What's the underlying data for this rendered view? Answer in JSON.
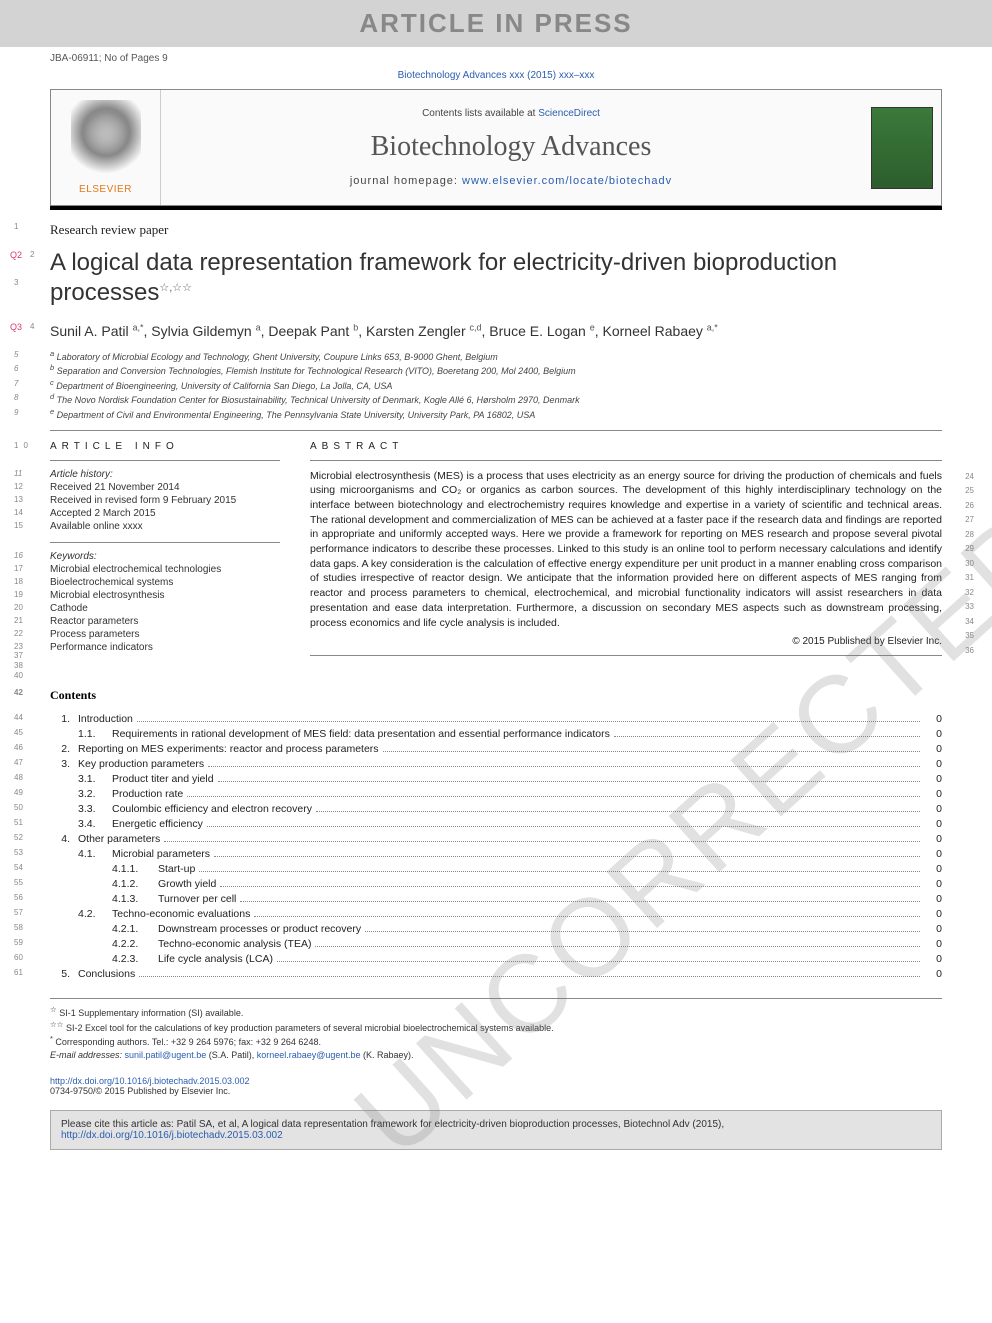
{
  "banner": "ARTICLE IN PRESS",
  "proof_info": "JBA-06911; No of Pages 9",
  "journal_ref_text": "Biotechnology Advances xxx (2015) xxx–xxx",
  "contents_list_pre": "Contents lists available at ",
  "contents_list_link": "ScienceDirect",
  "journal_title": "Biotechnology Advances",
  "journal_homepage_label": "journal homepage: ",
  "journal_homepage_link": "www.elsevier.com/locate/biotechadv",
  "publisher_name": "ELSEVIER",
  "article_type": "Research review paper",
  "article_type_ln": "1",
  "title_ln": [
    "2",
    "3"
  ],
  "title_query": "Q2",
  "title": "A logical data representation framework for electricity-driven bioproduction processes",
  "title_stars": "☆,☆☆",
  "authors_query": "Q3",
  "authors_ln": "4",
  "authors_html": "Sunil A. Patil <sup>a,*</sup>, Sylvia Gildemyn <sup>a</sup>, Deepak Pant <sup>b</sup>, Karsten Zengler <sup>c,d</sup>, Bruce E. Logan <sup>e</sup>, Korneel Rabaey <sup>a,*</sup>",
  "affiliations": [
    {
      "ln": "5",
      "sup": "a",
      "text": "Laboratory of Microbial Ecology and Technology, Ghent University, Coupure Links 653, B-9000 Ghent, Belgium"
    },
    {
      "ln": "6",
      "sup": "b",
      "text": "Separation and Conversion Technologies, Flemish Institute for Technological Research (VITO), Boeretang 200, Mol 2400, Belgium"
    },
    {
      "ln": "7",
      "sup": "c",
      "text": "Department of Bioengineering, University of California San Diego, La Jolla, CA, USA"
    },
    {
      "ln": "8",
      "sup": "d",
      "text": "The Novo Nordisk Foundation Center for Biosustainability, Technical University of Denmark, Kogle Allé 6, Hørsholm 2970, Denmark"
    },
    {
      "ln": "9",
      "sup": "e",
      "text": "Department of Civil and Environmental Engineering, The Pennsylvania State University, University Park, PA 16802, USA"
    }
  ],
  "info_heading_ln": "10",
  "info_heading": "ARTICLE INFO",
  "history_heading_ln": "11",
  "history_heading": "Article history:",
  "history": [
    {
      "ln": "12",
      "text": "Received 21 November 2014"
    },
    {
      "ln": "13",
      "text": "Received in revised form 9 February 2015"
    },
    {
      "ln": "14",
      "text": "Accepted 2 March 2015"
    },
    {
      "ln": "15",
      "text": "Available online xxxx"
    }
  ],
  "keywords_heading_ln": "16",
  "keywords_heading": "Keywords:",
  "keywords": [
    {
      "ln": "17",
      "text": "Microbial electrochemical technologies"
    },
    {
      "ln": "18",
      "text": "Bioelectrochemical systems"
    },
    {
      "ln": "19",
      "text": "Microbial electrosynthesis"
    },
    {
      "ln": "20",
      "text": "Cathode"
    },
    {
      "ln": "21",
      "text": "Reactor parameters"
    },
    {
      "ln": "22",
      "text": "Process parameters"
    },
    {
      "ln": "23",
      "text": "Performance indicators"
    }
  ],
  "abs_heading": "ABSTRACT",
  "abstract": "Microbial electrosynthesis (MES) is a process that uses electricity as an energy source for driving the production of chemicals and fuels using microorganisms and CO₂ or organics as carbon sources. The development of this highly interdisciplinary technology on the interface between biotechnology and electrochemistry requires knowledge and expertise in a variety of scientific and technical areas. The rational development and commercialization of MES can be achieved at a faster pace if the research data and findings are reported in appropriate and uniformly accepted ways. Here we provide a framework for reporting on MES research and propose several pivotal performance indicators to describe these processes. Linked to this study is an online tool to perform necessary calculations and identify data gaps. A key consideration is the calculation of effective energy expenditure per unit product in a manner enabling cross comparison of studies irrespective of reactor design. We anticipate that the information provided here on different aspects of MES ranging from reactor and process parameters to chemical, electrochemical, and microbial functionality indicators will assist researchers in data presentation and ease data interpretation. Furthermore, a discussion on secondary MES aspects such as downstream processing, process economics and life cycle analysis is included.",
  "abs_ln_start": 24,
  "abs_ln_end": 36,
  "extra_ln": [
    "37",
    "38",
    "40"
  ],
  "copyright": "© 2015 Published by Elsevier Inc.",
  "contents_heading_ln": "42",
  "contents_heading": "Contents",
  "toc": [
    {
      "ln": "44",
      "level": 1,
      "num": "1.",
      "label": "Introduction",
      "page": "0"
    },
    {
      "ln": "45",
      "level": 2,
      "num": "1.1.",
      "label": "Requirements in rational development of MES field: data presentation and essential performance indicators",
      "page": "0"
    },
    {
      "ln": "46",
      "level": 1,
      "num": "2.",
      "label": "Reporting on MES experiments: reactor and process parameters",
      "page": "0"
    },
    {
      "ln": "47",
      "level": 1,
      "num": "3.",
      "label": "Key production parameters",
      "page": "0"
    },
    {
      "ln": "48",
      "level": 2,
      "num": "3.1.",
      "label": "Product titer and yield",
      "page": "0"
    },
    {
      "ln": "49",
      "level": 2,
      "num": "3.2.",
      "label": "Production rate",
      "page": "0"
    },
    {
      "ln": "50",
      "level": 2,
      "num": "3.3.",
      "label": "Coulombic efficiency and electron recovery",
      "page": "0"
    },
    {
      "ln": "51",
      "level": 2,
      "num": "3.4.",
      "label": "Energetic efficiency",
      "page": "0"
    },
    {
      "ln": "52",
      "level": 1,
      "num": "4.",
      "label": "Other parameters",
      "page": "0"
    },
    {
      "ln": "53",
      "level": 2,
      "num": "4.1.",
      "label": "Microbial parameters",
      "page": "0"
    },
    {
      "ln": "54",
      "level": 3,
      "num": "4.1.1.",
      "label": "Start-up",
      "page": "0"
    },
    {
      "ln": "55",
      "level": 3,
      "num": "4.1.2.",
      "label": "Growth yield",
      "page": "0"
    },
    {
      "ln": "56",
      "level": 3,
      "num": "4.1.3.",
      "label": "Turnover per cell",
      "page": "0"
    },
    {
      "ln": "57",
      "level": 2,
      "num": "4.2.",
      "label": "Techno-economic evaluations",
      "page": "0"
    },
    {
      "ln": "58",
      "level": 3,
      "num": "4.2.1.",
      "label": "Downstream processes or product recovery",
      "page": "0"
    },
    {
      "ln": "59",
      "level": 3,
      "num": "4.2.2.",
      "label": "Techno-economic analysis (TEA)",
      "page": "0"
    },
    {
      "ln": "60",
      "level": 3,
      "num": "4.2.3.",
      "label": "Life cycle analysis (LCA)",
      "page": "0"
    },
    {
      "ln": "61",
      "level": 1,
      "num": "5.",
      "label": "Conclusions",
      "page": "0"
    }
  ],
  "footnotes": [
    {
      "mark": "☆",
      "text": "SI-1 Supplementary information (SI) available."
    },
    {
      "mark": "☆☆",
      "text": "SI-2 Excel tool for the calculations of key production parameters of several microbial bioelectrochemical systems available."
    },
    {
      "mark": "*",
      "text": "Corresponding authors. Tel.: +32 9 264 5976; fax: +32 9 264 6248."
    }
  ],
  "email_label": "E-mail addresses: ",
  "emails": [
    {
      "addr": "sunil.patil@ugent.be",
      "who": "(S.A. Patil),"
    },
    {
      "addr": "korneel.rabaey@ugent.be",
      "who": "(K. Rabaey)."
    }
  ],
  "doi_link": "http://dx.doi.org/10.1016/j.biotechadv.2015.03.002",
  "issn_line": "0734-9750/© 2015 Published by Elsevier Inc.",
  "cite_text_pre": "Please cite this article as: Patil SA, et al, A logical data representation framework for electricity-driven bioproduction processes, Biotechnol Adv (2015), ",
  "cite_link": "http://dx.doi.org/10.1016/j.biotechadv.2015.03.002",
  "watermark": "UNCORRECTED PROOF",
  "colors": {
    "link": "#2a5db0",
    "query": "#d53a7a",
    "banner_bg": "#d3d3d3",
    "cite_bg": "#e3e3e3"
  }
}
